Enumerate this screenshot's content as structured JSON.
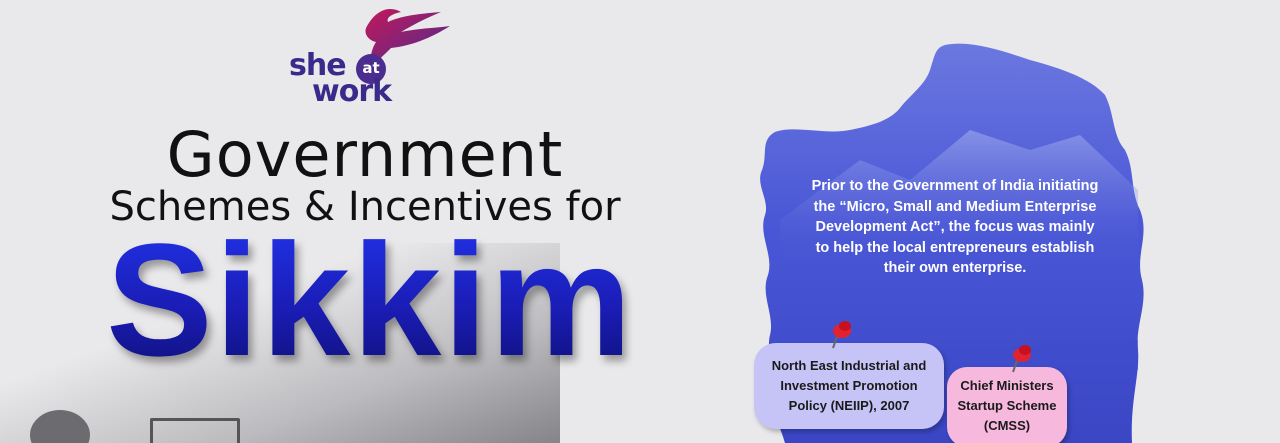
{
  "logo": {
    "she": "she",
    "at": "at",
    "work": "work",
    "colors": {
      "primary": "#3a2a8c",
      "bird_top": "#c2185b",
      "bird_bottom": "#4a2d8f"
    }
  },
  "title": {
    "line1": "Government",
    "line2": "Schemes & Incentives for",
    "line3": "Sikkim"
  },
  "map": {
    "description": "Prior to the Government of India initiating the “Micro, Small and Medium Enterprise Development Act”, the focus was mainly to help the local entrepreneurs establish their own enterprise.",
    "fill_color": "#4a57d6"
  },
  "schemes": [
    {
      "label": "North East Industrial and Investment Promotion Policy (NEIIP), 2007",
      "color": "#c6c4f7",
      "icon": "pushpin-icon"
    },
    {
      "label": "Chief Ministers Startup Scheme (CMSS)",
      "color": "#f7b8dd",
      "icon": "pushpin-icon"
    }
  ]
}
